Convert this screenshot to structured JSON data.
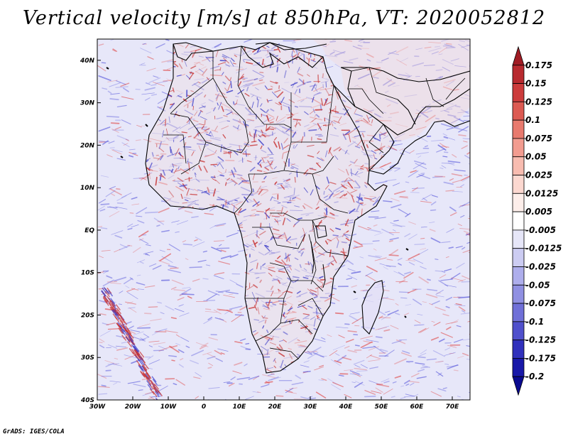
{
  "title": "Vertical velocity [m/s] at 850hPa, VT: 2020052812",
  "footer": "GrADS: IGES/COLA",
  "map": {
    "region": "Africa",
    "lon_range": [
      -30,
      75
    ],
    "lat_range": [
      -40,
      45
    ],
    "lon_ticks": [
      "30W",
      "20W",
      "10W",
      "0",
      "10E",
      "20E",
      "30E",
      "40E",
      "50E",
      "60E",
      "70E"
    ],
    "lat_ticks": [
      "40N",
      "30N",
      "20N",
      "10N",
      "EQ",
      "10S",
      "20S",
      "30S",
      "40S"
    ]
  },
  "colorbar": {
    "labels": [
      "0.175",
      "0.15",
      "0.125",
      "0.1",
      "0.075",
      "0.05",
      "0.025",
      "0.0125",
      "0.005",
      "-0.005",
      "-0.0125",
      "-0.025",
      "-0.05",
      "-0.075",
      "-0.1",
      "-0.125",
      "-0.175",
      "-0.2"
    ],
    "colors": [
      "#a01c24",
      "#b82a2f",
      "#cc3c3c",
      "#dc5a52",
      "#e87a6e",
      "#f29c90",
      "#f8bcb0",
      "#fcd8d0",
      "#fdeeea",
      "#ffffff",
      "#e6e6f8",
      "#ccccf2",
      "#aeaeec",
      "#9090e2",
      "#7070d8",
      "#5050cc",
      "#3030bc",
      "#1818a8",
      "#0a0a90"
    ]
  },
  "colors": {
    "background": "#ffffff",
    "field_pos": "#e05050",
    "field_neg": "#5a5adc",
    "border": "#000000"
  }
}
